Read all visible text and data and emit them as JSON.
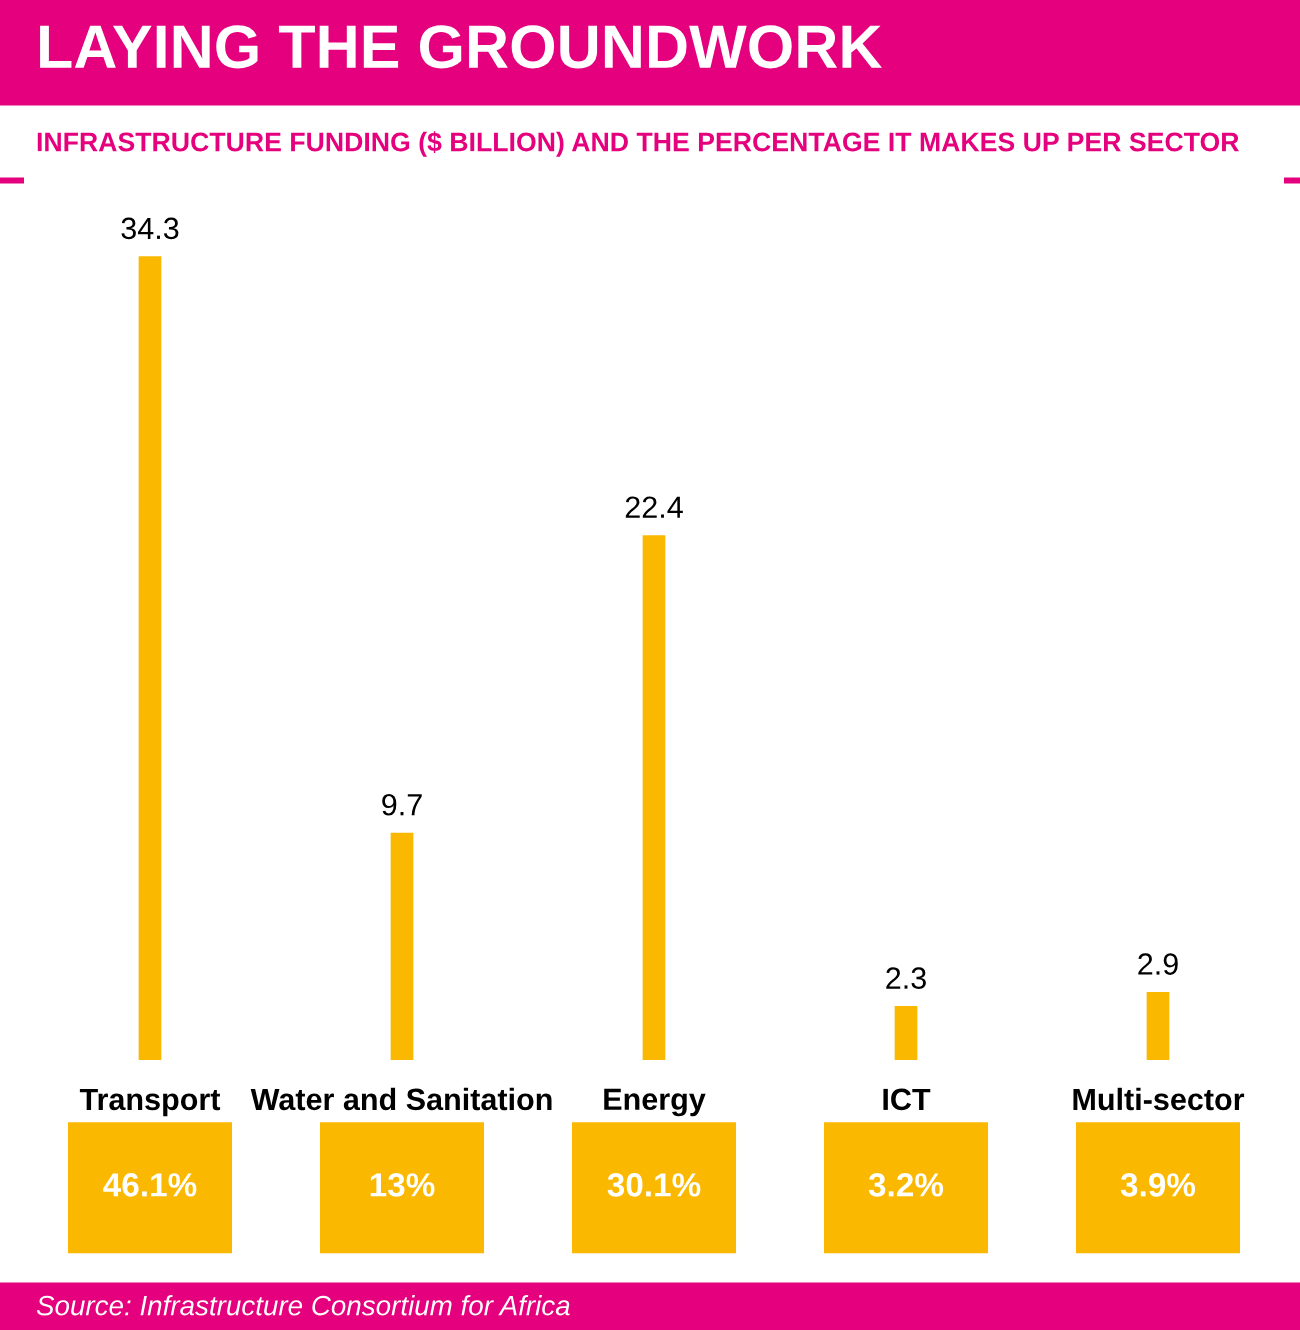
{
  "chart_data": {
    "type": "bar",
    "title": "LAYING THE GROUNDWORK",
    "subtitle": "INFRASTRUCTURE FUNDING ($ BILLION) AND THE PERCENTAGE IT MAKES UP PER SECTOR",
    "categories": [
      "Transport",
      "Water and Sanitation",
      "Energy",
      "ICT",
      "Multi-sector"
    ],
    "values": [
      34.3,
      9.7,
      22.4,
      2.3,
      2.9
    ],
    "color": "#fbb800",
    "data_labels": true,
    "annotations": [
      "46.1%",
      "13%",
      "30.1%",
      "3.2%",
      "3.9%",
      "Source: Infrastructure Consortium for Africa"
    ],
    "grid": false,
    "legend": false
  }
}
